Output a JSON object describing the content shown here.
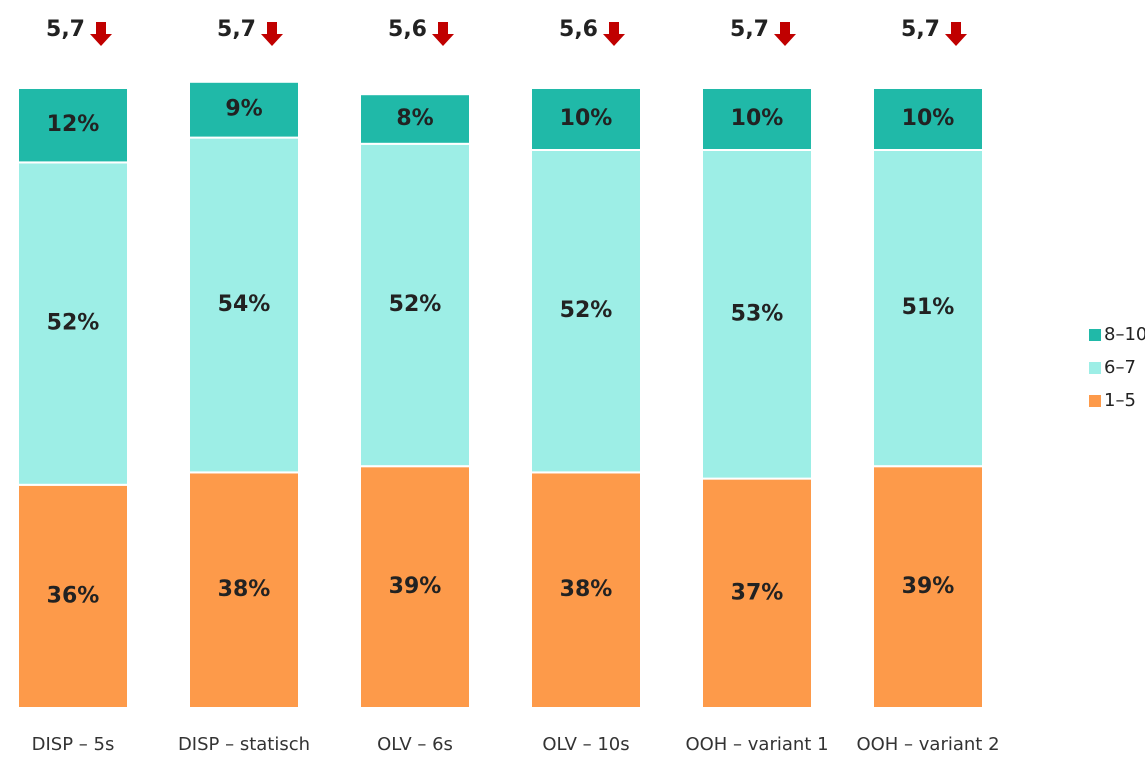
{
  "chart_data": {
    "type": "stacked_bar",
    "categories": [
      "DISP – 5s",
      "DISP – statisch",
      "OLV – 6s",
      "OLV – 10s",
      "OOH – variant 1",
      "OOH – variant 2"
    ],
    "series": [
      {
        "name": "1–5",
        "color": "#fd9a4a",
        "values": [
          36,
          38,
          39,
          38,
          37,
          39
        ],
        "value_labels": [
          "36%",
          "38%",
          "39%",
          "38%",
          "37%",
          "39%"
        ]
      },
      {
        "name": "6–7",
        "color": "#9deee6",
        "values": [
          52,
          54,
          52,
          52,
          53,
          51
        ],
        "value_labels": [
          "52%",
          "54%",
          "52%",
          "52%",
          "53%",
          "51%"
        ]
      },
      {
        "name": "8–10",
        "color": "#20b9a8",
        "values": [
          12,
          9,
          8,
          10,
          10,
          10
        ],
        "value_labels": [
          "12%",
          "9%",
          "8%",
          "10%",
          "10%",
          "10%"
        ]
      }
    ],
    "annotations": [
      "5,7",
      "5,7",
      "5,6",
      "5,6",
      "5,7",
      "5,7"
    ],
    "annotation_color": "#c00000",
    "legend": "right"
  }
}
